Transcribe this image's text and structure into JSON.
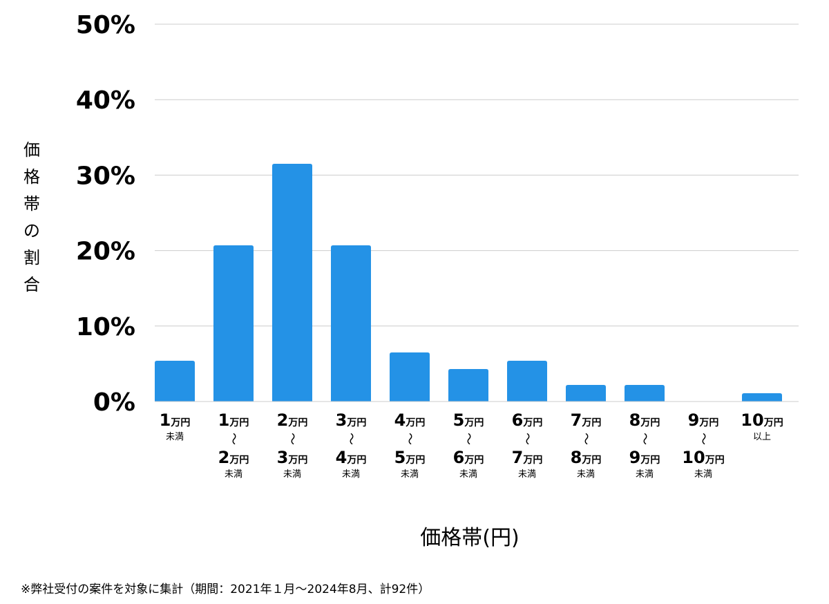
{
  "chart_data": {
    "type": "bar",
    "categories": [
      {
        "top": "1",
        "top_unit": "万円",
        "note": "未満"
      },
      {
        "top": "1",
        "top_unit": "万円",
        "tilde": "〜",
        "bottom": "2",
        "bottom_unit": "万円",
        "note": "未満"
      },
      {
        "top": "2",
        "top_unit": "万円",
        "tilde": "〜",
        "bottom": "3",
        "bottom_unit": "万円",
        "note": "未満"
      },
      {
        "top": "3",
        "top_unit": "万円",
        "tilde": "〜",
        "bottom": "4",
        "bottom_unit": "万円",
        "note": "未満"
      },
      {
        "top": "4",
        "top_unit": "万円",
        "tilde": "〜",
        "bottom": "5",
        "bottom_unit": "万円",
        "note": "未満"
      },
      {
        "top": "5",
        "top_unit": "万円",
        "tilde": "〜",
        "bottom": "6",
        "bottom_unit": "万円",
        "note": "未満"
      },
      {
        "top": "6",
        "top_unit": "万円",
        "tilde": "〜",
        "bottom": "7",
        "bottom_unit": "万円",
        "note": "未満"
      },
      {
        "top": "7",
        "top_unit": "万円",
        "tilde": "〜",
        "bottom": "8",
        "bottom_unit": "万円",
        "note": "未満"
      },
      {
        "top": "8",
        "top_unit": "万円",
        "tilde": "〜",
        "bottom": "9",
        "bottom_unit": "万円",
        "note": "未満"
      },
      {
        "top": "9",
        "top_unit": "万円",
        "tilde": "〜",
        "bottom": "10",
        "bottom_unit": "万円",
        "note": "未満"
      },
      {
        "top": "10",
        "top_unit": "万円",
        "note": "以上"
      }
    ],
    "values": [
      5.4,
      20.7,
      31.5,
      20.7,
      6.5,
      4.3,
      5.4,
      2.2,
      2.2,
      0,
      1.1
    ],
    "ylim": [
      0,
      50
    ],
    "yticks": [
      "0%",
      "10%",
      "20%",
      "30%",
      "40%",
      "50%"
    ],
    "ylabel": "価格帯の割合",
    "xlabel": "価格帯(円)",
    "grid": true,
    "bar_color": "#2492e6",
    "grid_color": "#cccccc"
  },
  "footnote": "※弊社受付の案件を対象に集計（期間：2021年１月〜2024年8月、計92件）"
}
